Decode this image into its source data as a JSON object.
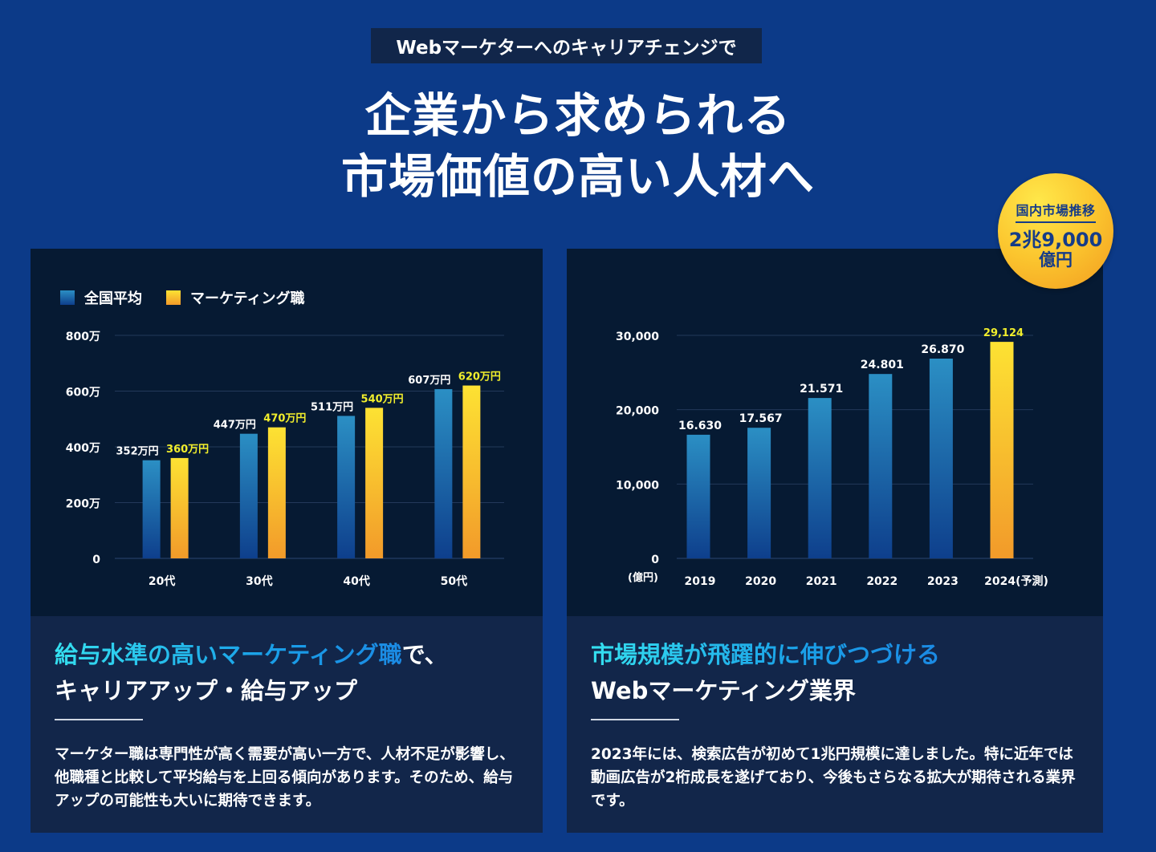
{
  "eyebrow": "Webマーケターへのキャリアチェンジで",
  "headline": {
    "line1": "企業から求められる",
    "line2": "市場価値の高い人材へ"
  },
  "badge": {
    "label": "国内市場推移",
    "value": "2兆9,000",
    "unit": "億円"
  },
  "colors": {
    "background": "#0c3a88",
    "chart_bg": "#061a33",
    "card_bg": "#12264a",
    "blue_top": "#2b8fc4",
    "blue_bottom": "#0e3f8c",
    "yellow_top": "#fde233",
    "yellow_bottom": "#f29a2a",
    "yellow_label": "#f1ee2c",
    "grid": "#23395a"
  },
  "left_section": {
    "title_accent": "給与水準の高いマーケティング職",
    "title_rest": "で、",
    "title_line2": "キャリアアップ・給与アップ",
    "body": "マーケター職は専門性が高く需要が高い一方で、人材不足が影響し、他職種と比較して平均給与を上回る傾向があります。そのため、給与アップの可能性も大いに期待できます。"
  },
  "right_section": {
    "title_accent": "市場規模が飛躍的に伸びつづける",
    "title_line2": "Webマーケティング業界",
    "body": "2023年には、検索広告が初めて1兆円規模に達しました。特に近年では動画広告が2桁成長を遂げており、今後もさらなる拡大が期待される業界です。"
  },
  "chart_data": [
    {
      "type": "bar",
      "title": "",
      "categories": [
        "20代",
        "30代",
        "40代",
        "50代"
      ],
      "series": [
        {
          "name": "全国平均",
          "values": [
            352,
            447,
            511,
            607
          ],
          "labels": [
            "352万円",
            "447万円",
            "511万円",
            "607万円"
          ]
        },
        {
          "name": "マーケティング職",
          "values": [
            360,
            470,
            540,
            620
          ],
          "labels": [
            "360万円",
            "470万円",
            "540万円",
            "620万円"
          ]
        }
      ],
      "yticks": [
        0,
        200,
        400,
        600,
        800
      ],
      "ytick_labels": [
        "0",
        "200万",
        "400万",
        "600万",
        "800万"
      ],
      "ylim": [
        0,
        800
      ],
      "xlabel": "",
      "ylabel": "",
      "grid": true,
      "legend": "top-left"
    },
    {
      "type": "bar",
      "title": "",
      "categories": [
        "2019",
        "2020",
        "2021",
        "2022",
        "2023",
        "2024(予測)"
      ],
      "values": [
        16630,
        17567,
        21571,
        24801,
        26870,
        29124
      ],
      "labels": [
        "16.630",
        "17.567",
        "21.571",
        "24.801",
        "26.870",
        "29,124"
      ],
      "highlight_index": 5,
      "yticks": [
        0,
        10000,
        20000,
        30000
      ],
      "ytick_labels": [
        "0",
        "10,000",
        "20,000",
        "30,000"
      ],
      "ylim": [
        0,
        30000
      ],
      "ylabel": "(億円)",
      "xlabel": "",
      "grid": true
    }
  ]
}
